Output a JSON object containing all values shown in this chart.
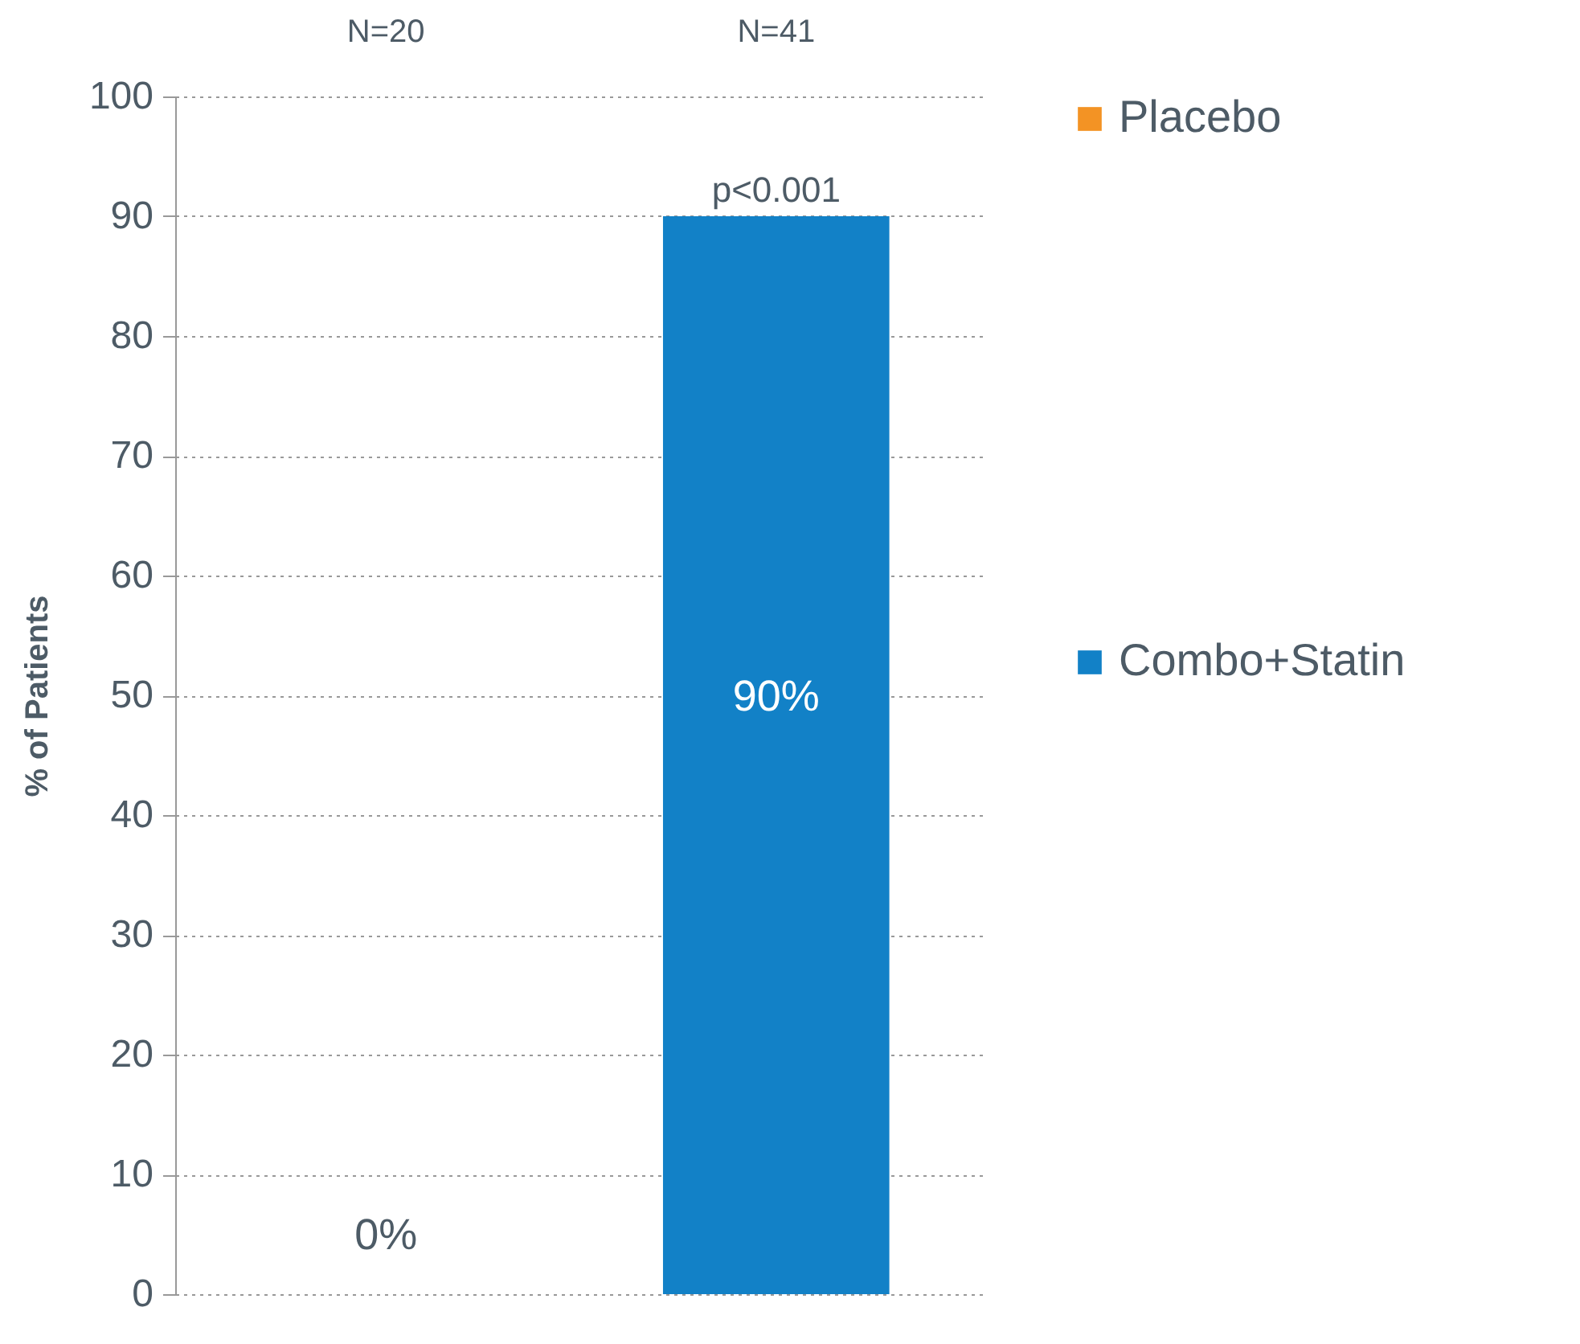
{
  "chart_data": {
    "type": "bar",
    "ylabel": "% of Patients",
    "categories": [
      null,
      null
    ],
    "series": [
      {
        "name": "Placebo",
        "color": "#f39324",
        "values": [
          0,
          null
        ],
        "value_labels": [
          "0%",
          null
        ]
      },
      {
        "name": "Combo+Statin",
        "color": "#1281c7",
        "values": [
          null,
          90
        ],
        "value_labels": [
          null,
          "90%"
        ]
      }
    ],
    "ylim": [
      0,
      100
    ],
    "yticks": [
      0,
      10,
      20,
      30,
      40,
      50,
      60,
      70,
      80,
      90,
      100
    ],
    "grid": "y",
    "legend": "right",
    "annotations": [
      "N=20",
      "N=41",
      {
        "text": "p<0.001",
        "y": 90
      }
    ]
  }
}
